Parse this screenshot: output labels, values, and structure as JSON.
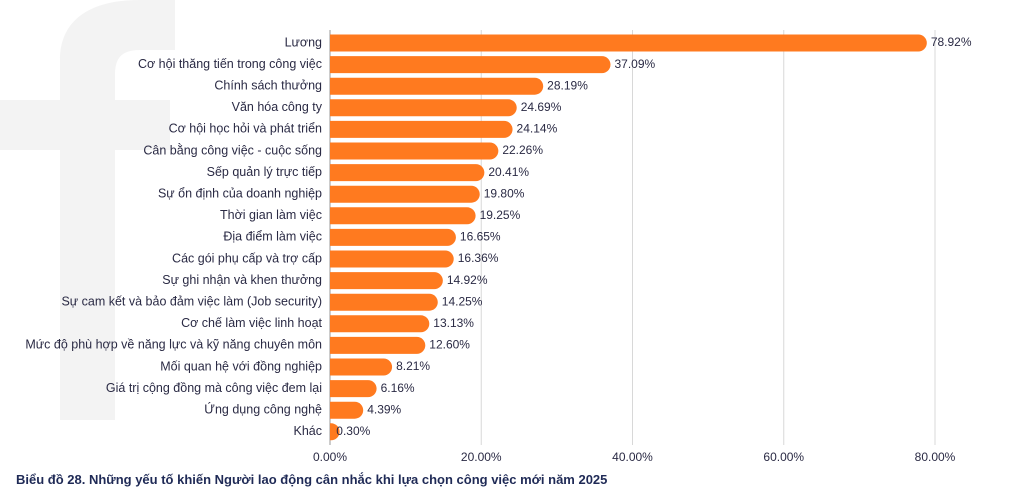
{
  "chart_data": {
    "type": "bar",
    "orientation": "horizontal",
    "title": "Biểu đồ 28. Những yếu tố khiến Người lao động cân nhắc khi lựa chọn công việc mới năm 2025",
    "xlabel": "",
    "ylabel": "",
    "xlim": [
      0,
      80
    ],
    "grid": true,
    "categories": [
      "Lương",
      "Cơ hội thăng tiến trong công việc",
      "Chính sách thưởng",
      "Văn hóa công ty",
      "Cơ hội học hỏi và phát triển",
      "Cân bằng công việc - cuộc sống",
      "Sếp quản lý trực tiếp",
      "Sự ổn định của doanh nghiệp",
      "Thời gian làm việc",
      "Địa điểm làm việc",
      "Các gói phụ cấp và trợ cấp",
      "Sự ghi nhận và khen thưởng",
      "Sự cam kết và bảo đảm việc làm (Job security)",
      "Cơ chế làm việc linh hoạt",
      "Mức độ phù hợp về năng lực và kỹ năng chuyên môn",
      "Mối quan hệ với đồng nghiệp",
      "Giá trị cộng đồng mà công việc đem lại",
      "Ứng dụng công nghệ",
      "Khác"
    ],
    "values": [
      78.92,
      37.09,
      28.19,
      24.69,
      24.14,
      22.26,
      20.41,
      19.8,
      19.25,
      16.65,
      16.36,
      14.92,
      14.25,
      13.13,
      12.6,
      8.21,
      6.16,
      4.39,
      0.3
    ],
    "value_labels": [
      "78.92%",
      "37.09%",
      "28.19%",
      "24.69%",
      "24.14%",
      "22.26%",
      "20.41%",
      "19.80%",
      "19.25%",
      "16.65%",
      "16.36%",
      "14.92%",
      "14.25%",
      "13.13%",
      "12.60%",
      "8.21%",
      "6.16%",
      "4.39%",
      "0.30%"
    ],
    "ticks": [
      0,
      20,
      40,
      60,
      80
    ],
    "tick_labels": [
      "0.00%",
      "20.00%",
      "40.00%",
      "60.00%",
      "80.00%"
    ],
    "colors": {
      "bar": "#ff7a1f",
      "grid": "#d8d8d8",
      "axis": "#9a9a9a",
      "text": "#2a2a44",
      "title": "#1f2a56",
      "watermark": "#f3f3f3"
    }
  }
}
